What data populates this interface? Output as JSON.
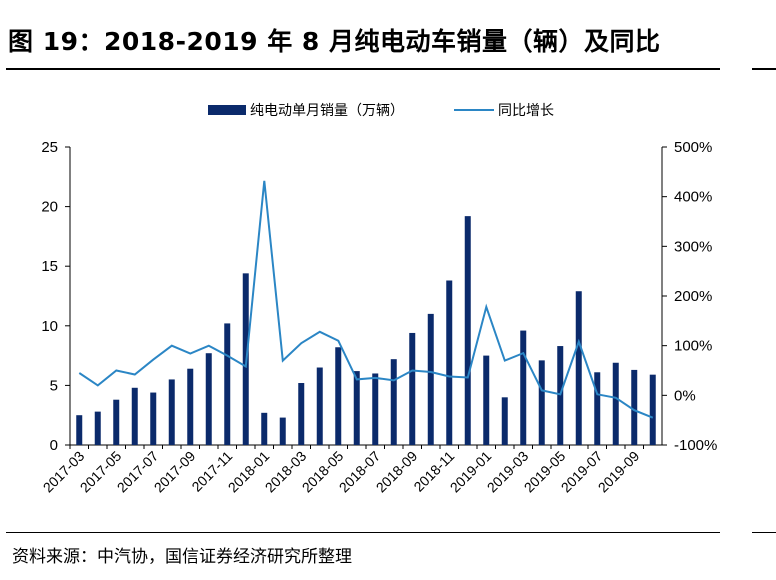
{
  "header": {
    "title": "图 19：2018-2019 年 8 月纯电动车销量（辆）及同比"
  },
  "footer": {
    "source": "资料来源：中汽协，国信证券经济研究所整理"
  },
  "chart_data": {
    "type": "bar+line",
    "categories": [
      "2017-03",
      "2017-04",
      "2017-05",
      "2017-06",
      "2017-07",
      "2017-08",
      "2017-09",
      "2017-10",
      "2017-11",
      "2017-12",
      "2018-01",
      "2018-02",
      "2018-03",
      "2018-04",
      "2018-05",
      "2018-06",
      "2018-07",
      "2018-08",
      "2018-09",
      "2018-10",
      "2018-11",
      "2018-12",
      "2019-01",
      "2019-02",
      "2019-03",
      "2019-04",
      "2019-05",
      "2019-06",
      "2019-07",
      "2019-08",
      "2019-09",
      "2019-10"
    ],
    "tick_labels": [
      "2017-03",
      "2017-05",
      "2017-07",
      "2017-09",
      "2017-11",
      "2018-01",
      "2018-03",
      "2018-05",
      "2018-07",
      "2018-09",
      "2018-11",
      "2019-01",
      "2019-03",
      "2019-05",
      "2019-07",
      "2019-09"
    ],
    "series": [
      {
        "name": "纯电动单月销量（万辆）",
        "type": "bar",
        "axis": "left",
        "color": "#0b2a6b",
        "values": [
          2.5,
          2.8,
          3.8,
          4.8,
          4.4,
          5.5,
          6.4,
          7.7,
          10.2,
          14.4,
          2.7,
          2.3,
          5.2,
          6.5,
          8.2,
          6.2,
          6.0,
          7.2,
          9.4,
          11.0,
          13.8,
          19.2,
          7.5,
          4.0,
          9.6,
          7.1,
          8.3,
          12.9,
          6.1,
          6.9,
          6.3,
          5.9
        ]
      },
      {
        "name": "同比增长",
        "type": "line",
        "axis": "right",
        "color": "#2b86c5",
        "values": [
          45,
          20,
          50,
          42,
          72,
          100,
          84,
          100,
          80,
          58,
          432,
          70,
          105,
          128,
          110,
          32,
          35,
          30,
          50,
          47,
          38,
          36,
          178,
          70,
          85,
          10,
          2,
          108,
          2,
          -5,
          -30,
          -45
        ]
      }
    ],
    "y_left": {
      "min": 0,
      "max": 25,
      "ticks": [
        0,
        5,
        10,
        15,
        20,
        25
      ]
    },
    "y_right": {
      "min": -100,
      "max": 500,
      "ticks": [
        -100,
        0,
        100,
        200,
        300,
        400,
        500
      ],
      "suffix": "%"
    },
    "legend_position": "top-center"
  }
}
